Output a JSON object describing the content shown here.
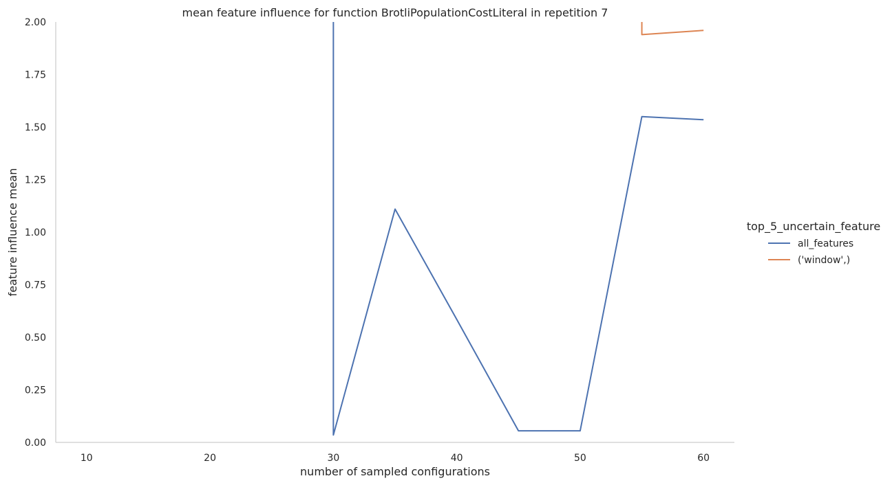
{
  "chart_data": {
    "type": "line",
    "title": "mean feature influence for function BrotliPopulationCostLiteral in repetition 7",
    "xlabel": "number of sampled configurations",
    "ylabel": "feature influence mean",
    "xlim": [
      7.5,
      62.5
    ],
    "ylim": [
      0,
      2.0
    ],
    "x_ticks": [
      10,
      20,
      30,
      40,
      50,
      60
    ],
    "y_ticks": [
      0.0,
      0.25,
      0.5,
      0.75,
      1.0,
      1.25,
      1.5,
      1.75,
      2.0
    ],
    "x_tick_labels": [
      "10",
      "20",
      "30",
      "40",
      "50",
      "60"
    ],
    "y_tick_labels": [
      "0.00",
      "0.25",
      "0.50",
      "0.75",
      "1.00",
      "1.25",
      "1.50",
      "1.75",
      "2.00"
    ],
    "grid": false,
    "legend": {
      "title": "top_5_uncertain_feature",
      "placement": "right"
    },
    "series": [
      {
        "name": "all_features",
        "color": "#4c72b0",
        "points": [
          [
            30,
            2.5
          ],
          [
            30,
            0.035
          ],
          [
            35,
            1.11
          ],
          [
            40,
            0.585
          ],
          [
            45,
            0.055
          ],
          [
            50,
            0.055
          ],
          [
            55,
            1.55
          ],
          [
            60,
            1.535
          ]
        ]
      },
      {
        "name": "('window',)",
        "color": "#dd8452",
        "points": [
          [
            55,
            2.5
          ],
          [
            55,
            1.94
          ],
          [
            60,
            1.96
          ]
        ]
      }
    ]
  }
}
